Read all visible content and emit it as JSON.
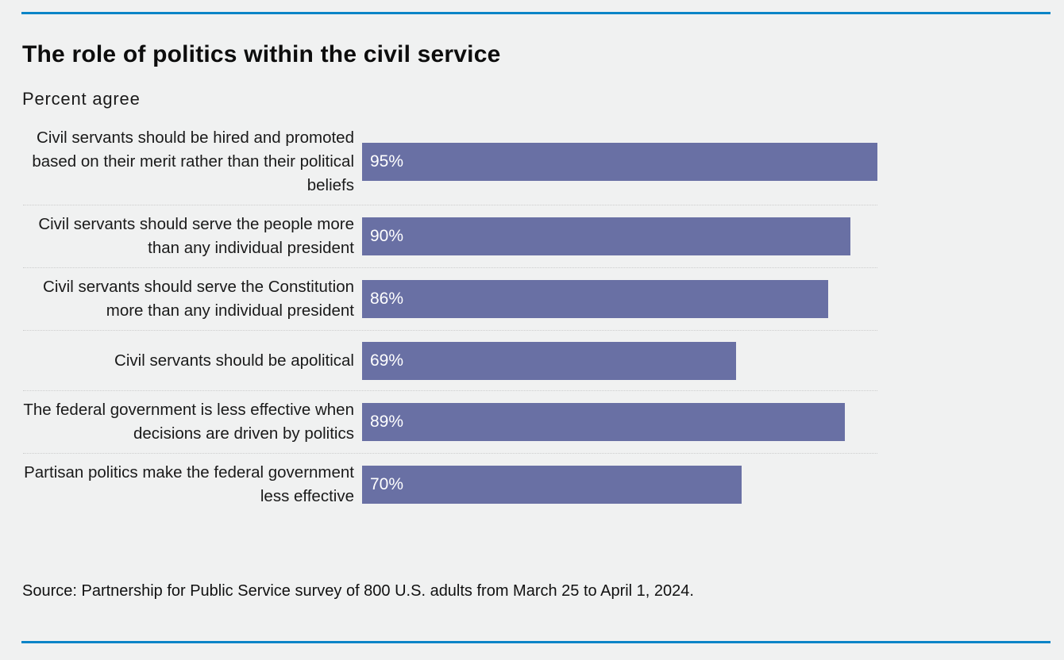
{
  "page": {
    "background_color": "#f0f1f1",
    "accent_line_color": "#0a84c7"
  },
  "header": {
    "title": "The role of politics within the civil service",
    "subtitle": "Percent agree"
  },
  "chart_data": {
    "type": "bar",
    "orientation": "horizontal",
    "title": "The role of politics within the civil service",
    "subtitle": "Percent agree",
    "xlabel": "",
    "ylabel": "",
    "xlim": [
      0,
      100
    ],
    "grid": false,
    "legend": "none",
    "bar_color": "#6970a4",
    "value_label_color": "#ffffff",
    "value_suffix": "%",
    "categories": [
      "Civil servants should be hired and promoted based on their merit rather than their political beliefs",
      "Civil servants should serve the people more than any individual president",
      "Civil servants should serve the Constitution more than any individual president",
      "Civil servants should be apolitical",
      "The federal government is less effective when decisions are driven by politics",
      "Partisan politics make the federal government less effective"
    ],
    "values": [
      95,
      90,
      86,
      69,
      89,
      70
    ],
    "value_labels": [
      "95%",
      "90%",
      "86%",
      "69%",
      "89%",
      "70%"
    ]
  },
  "footer": {
    "source": "Source: Partnership for Public Service survey of 800 U.S. adults from March 25 to April 1, 2024."
  }
}
